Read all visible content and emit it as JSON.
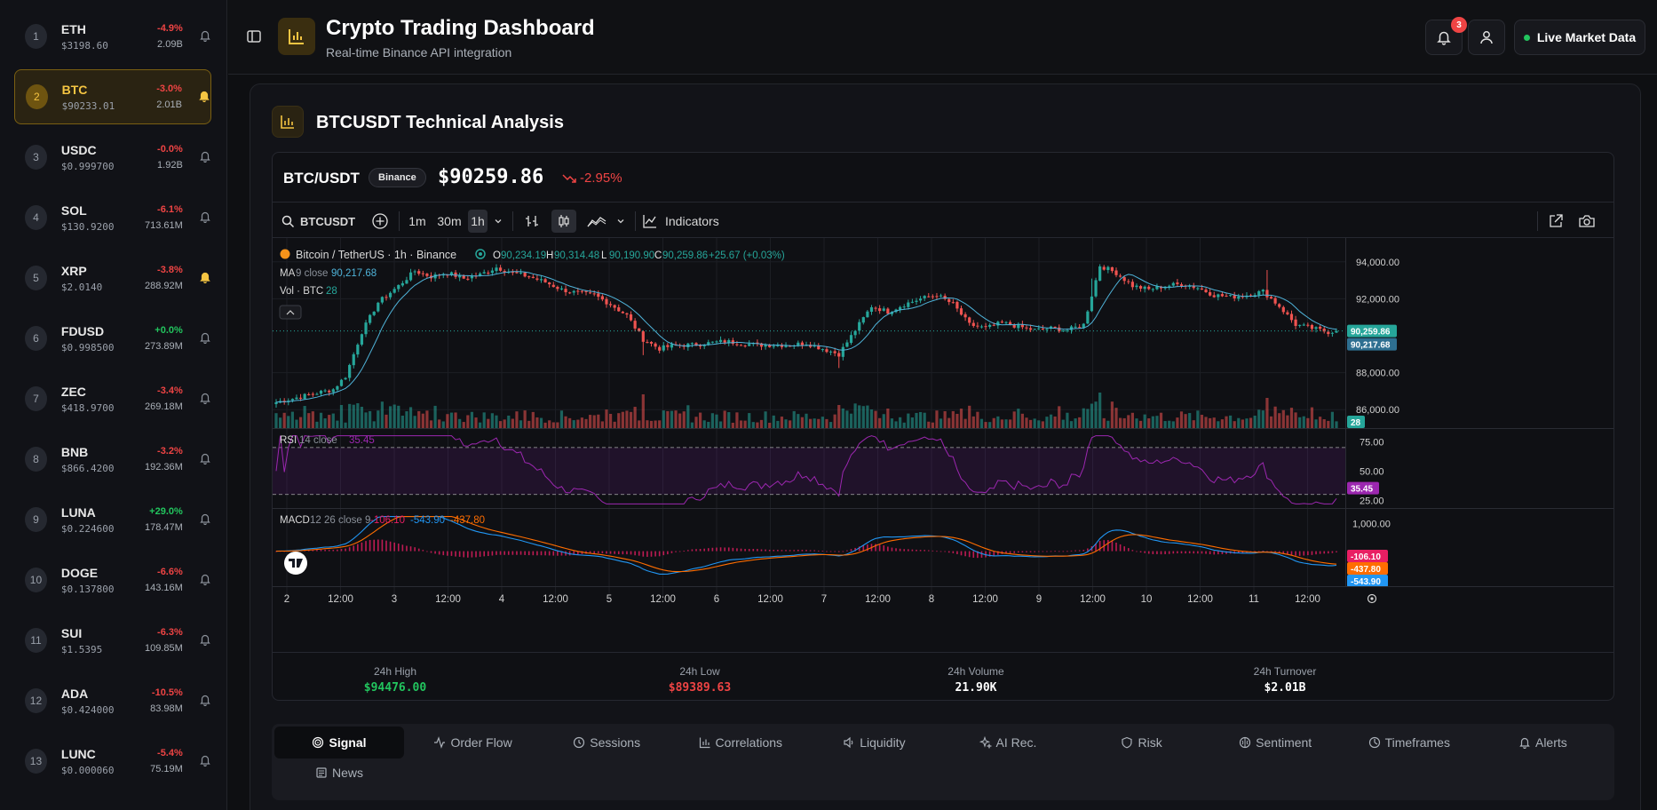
{
  "sidebar": {
    "coins": [
      {
        "rank": "1",
        "symbol": "ETH",
        "price": "$3198.60",
        "change": "-4.9%",
        "volume": "2.09B",
        "alert": false
      },
      {
        "rank": "2",
        "symbol": "BTC",
        "price": "$90233.01",
        "change": "-3.0%",
        "volume": "2.01B",
        "alert": true,
        "active": true
      },
      {
        "rank": "3",
        "symbol": "USDC",
        "price": "$0.999700",
        "change": "-0.0%",
        "volume": "1.92B",
        "alert": false
      },
      {
        "rank": "4",
        "symbol": "SOL",
        "price": "$130.9200",
        "change": "-6.1%",
        "volume": "713.61M",
        "alert": false
      },
      {
        "rank": "5",
        "symbol": "XRP",
        "price": "$2.0140",
        "change": "-3.8%",
        "volume": "288.92M",
        "alert": true
      },
      {
        "rank": "6",
        "symbol": "FDUSD",
        "price": "$0.998500",
        "change": "+0.0%",
        "volume": "273.89M",
        "alert": false
      },
      {
        "rank": "7",
        "symbol": "ZEC",
        "price": "$418.9700",
        "change": "-3.4%",
        "volume": "269.18M",
        "alert": false
      },
      {
        "rank": "8",
        "symbol": "BNB",
        "price": "$866.4200",
        "change": "-3.2%",
        "volume": "192.36M",
        "alert": false
      },
      {
        "rank": "9",
        "symbol": "LUNA",
        "price": "$0.224600",
        "change": "+29.0%",
        "volume": "178.47M",
        "alert": false
      },
      {
        "rank": "10",
        "symbol": "DOGE",
        "price": "$0.137800",
        "change": "-6.6%",
        "volume": "143.16M",
        "alert": false
      },
      {
        "rank": "11",
        "symbol": "SUI",
        "price": "$1.5395",
        "change": "-6.3%",
        "volume": "109.85M",
        "alert": false
      },
      {
        "rank": "12",
        "symbol": "ADA",
        "price": "$0.424000",
        "change": "-10.5%",
        "volume": "83.98M",
        "alert": false
      },
      {
        "rank": "13",
        "symbol": "LUNC",
        "price": "$0.000060",
        "change": "-5.4%",
        "volume": "75.19M",
        "alert": false
      }
    ]
  },
  "header": {
    "title": "Crypto Trading Dashboard",
    "subtitle": "Real-time Binance API integration",
    "notification_count": "3",
    "live_label": "Live Market Data"
  },
  "panel": {
    "title": "BTCUSDT Technical Analysis"
  },
  "ticker": {
    "pair": "BTC/USDT",
    "exchange": "Binance",
    "price": "$90259.86",
    "change": "-2.95%"
  },
  "toolbar": {
    "symbol": "BTCUSDT",
    "intervals": [
      "1m",
      "30m",
      "1h"
    ],
    "selected_interval": "1h",
    "indicators_label": "Indicators"
  },
  "chart_data": {
    "type": "candlestick",
    "legend": {
      "symbol": "Bitcoin / TetherUS · 1h · Binance",
      "open_label": "O",
      "open": "90,234.19",
      "high_label": "H",
      "high": "90,314.48",
      "low_label": "L",
      "low": "90,190.90",
      "close_label": "C",
      "close": "90,259.86",
      "change": "+25.67 (+0.03%)"
    },
    "ma": {
      "label": "MA",
      "params": "9 close",
      "value": "90,217.68"
    },
    "vol": {
      "label": "Vol · BTC",
      "value": "28"
    },
    "price_ticks": [
      "94,000.00",
      "92,000.00",
      "88,000.00",
      "86,000.00"
    ],
    "price_tick_values": [
      94000,
      92000,
      88000,
      86000
    ],
    "price_range": [
      85000,
      95000
    ],
    "last_price_label": "90,259.86",
    "ma_price_label": "90,217.68",
    "vol_label": "28",
    "rsi": {
      "label": "RSI",
      "params": "14 close",
      "value": "35.45",
      "ticks": [
        "75.00",
        "50.00",
        "25.00"
      ],
      "tick_values": [
        75,
        50,
        25
      ],
      "range": [
        20,
        82
      ],
      "upper": 70,
      "lower": 30
    },
    "macd": {
      "label": "MACD",
      "params": "12 26 close 9",
      "hist": "-106.10",
      "macd": "-543.90",
      "signal": "-437.80",
      "ticks": [
        "1,000.00"
      ],
      "tick_values": [
        1000
      ],
      "range": [
        -1200,
        1300
      ]
    },
    "x_ticks": [
      "2",
      "12:00",
      "3",
      "12:00",
      "4",
      "12:00",
      "5",
      "12:00",
      "6",
      "12:00",
      "7",
      "12:00",
      "8",
      "12:00",
      "9",
      "12:00",
      "10",
      "12:00",
      "11",
      "12:00"
    ],
    "anchors": [
      [
        0,
        86400
      ],
      [
        6,
        86700
      ],
      [
        10,
        86900
      ],
      [
        14,
        87100
      ],
      [
        17,
        87800
      ],
      [
        21,
        90200
      ],
      [
        25,
        91800
      ],
      [
        30,
        92700
      ],
      [
        34,
        93500
      ],
      [
        38,
        93200
      ],
      [
        42,
        93400
      ],
      [
        46,
        93100
      ],
      [
        50,
        93300
      ],
      [
        54,
        93700
      ],
      [
        58,
        93400
      ],
      [
        62,
        93200
      ],
      [
        66,
        92900
      ],
      [
        70,
        92500
      ],
      [
        74,
        92300
      ],
      [
        78,
        92200
      ],
      [
        82,
        91700
      ],
      [
        86,
        91100
      ],
      [
        90,
        89800
      ],
      [
        94,
        89300
      ],
      [
        98,
        89500
      ],
      [
        102,
        89500
      ],
      [
        106,
        89600
      ],
      [
        110,
        89700
      ],
      [
        114,
        89600
      ],
      [
        118,
        89500
      ],
      [
        122,
        89500
      ],
      [
        126,
        89500
      ],
      [
        130,
        89600
      ],
      [
        134,
        89300
      ],
      [
        138,
        89000
      ],
      [
        142,
        90300
      ],
      [
        146,
        91600
      ],
      [
        150,
        91300
      ],
      [
        154,
        91700
      ],
      [
        158,
        92000
      ],
      [
        162,
        92200
      ],
      [
        166,
        91700
      ],
      [
        170,
        90600
      ],
      [
        174,
        90400
      ],
      [
        178,
        90700
      ],
      [
        182,
        90500
      ],
      [
        186,
        90300
      ],
      [
        190,
        90400
      ],
      [
        194,
        90300
      ],
      [
        198,
        90600
      ],
      [
        202,
        93800
      ],
      [
        206,
        93400
      ],
      [
        210,
        92700
      ],
      [
        214,
        92500
      ],
      [
        218,
        92700
      ],
      [
        222,
        92800
      ],
      [
        226,
        92600
      ],
      [
        230,
        92200
      ],
      [
        234,
        92100
      ],
      [
        238,
        92200
      ],
      [
        242,
        92400
      ],
      [
        246,
        91600
      ],
      [
        250,
        90600
      ],
      [
        254,
        90400
      ],
      [
        258,
        90200
      ],
      [
        260,
        90260
      ]
    ]
  },
  "stats": [
    {
      "label": "24h High",
      "value": "$94476.00",
      "color": "#22c55e"
    },
    {
      "label": "24h Low",
      "value": "$89389.63",
      "color": "#ef4444"
    },
    {
      "label": "24h Volume",
      "value": "21.90K",
      "color": "#ffffff"
    },
    {
      "label": "24h Turnover",
      "value": "$2.01B",
      "color": "#ffffff"
    }
  ],
  "tabs": [
    {
      "label": "Signal",
      "icon": "target-icon",
      "active": true
    },
    {
      "label": "Order Flow",
      "icon": "activity-icon"
    },
    {
      "label": "Sessions",
      "icon": "clock-icon"
    },
    {
      "label": "Correlations",
      "icon": "bar-chart-icon"
    },
    {
      "label": "Liquidity",
      "icon": "speaker-icon"
    },
    {
      "label": "AI Rec.",
      "icon": "sparkles-icon"
    },
    {
      "label": "Risk",
      "icon": "shield-icon"
    },
    {
      "label": "Sentiment",
      "icon": "brain-icon"
    },
    {
      "label": "Timeframes",
      "icon": "timer-icon"
    },
    {
      "label": "Alerts",
      "icon": "bell-icon"
    },
    {
      "label": "News",
      "icon": "newspaper-icon"
    }
  ],
  "colors": {
    "up": "#26a69a",
    "down": "#ef5350",
    "accent": "#f5c542",
    "rsi": "#9c27b0",
    "macd": "#2196f3",
    "signal": "#ff6d00",
    "hist": "#e91e63"
  }
}
